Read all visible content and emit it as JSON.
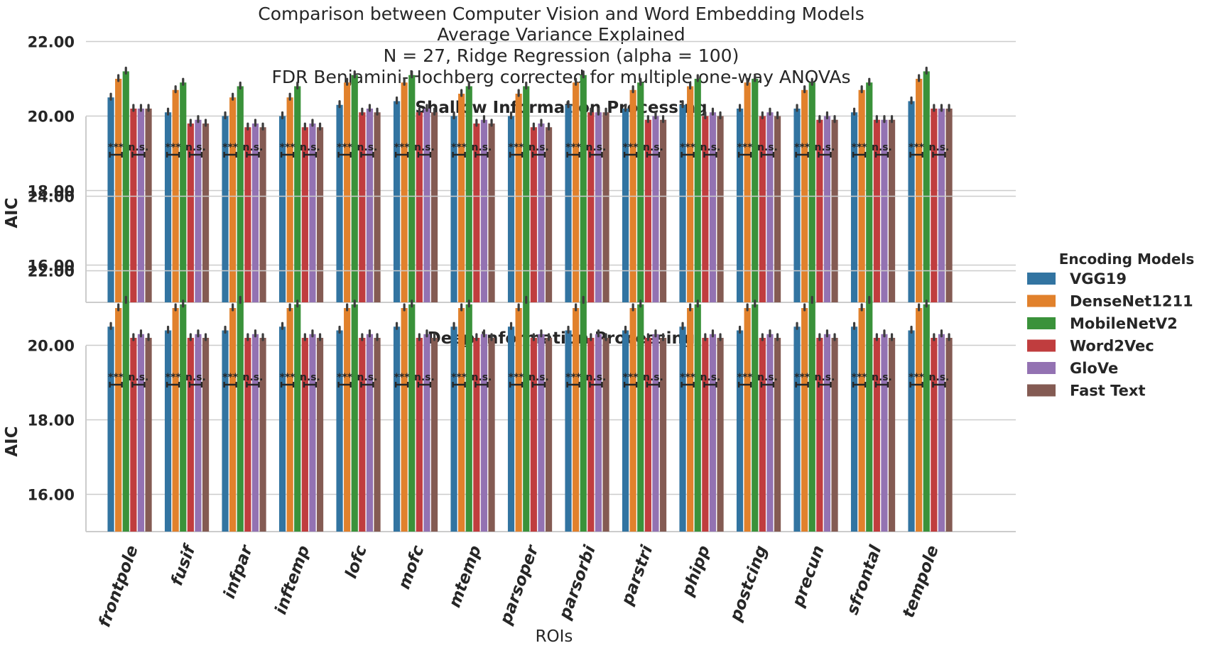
{
  "titles": [
    "Comparison between Computer Vision and Word Embedding Models",
    "Average Variance Explained",
    "N = 27, Ridge Regression (alpha = 100)",
    "FDR Benjamini-Hochberg corrected for multiple one-way ANOVAs"
  ],
  "colors": {
    "VGG19": "#3274a1",
    "DenseNet1211": "#e1812c",
    "MobileNetV2": "#3a923a",
    "Word2Vec": "#c03d3e",
    "GloVe": "#9372b2",
    "Fast Text": "#845b53"
  },
  "chart_data": {
    "type": "bar",
    "xlabel": "ROIs",
    "ylabel": "AIC",
    "ylim": [
      15,
      25
    ],
    "yticks": [
      "16.00",
      "18.00",
      "20.00",
      "22.00",
      "24.00"
    ],
    "grid": true,
    "legend": {
      "title": "Encoding Models",
      "placement": "right",
      "entries": [
        "VGG19",
        "DenseNet1211",
        "MobileNetV2",
        "Word2Vec",
        "GloVe",
        "Fast Text"
      ]
    },
    "categories": [
      "frontpole",
      "fusif",
      "infpar",
      "inftemp",
      "lofc",
      "mofc",
      "mtemp",
      "parsoper",
      "parsorbi",
      "parstri",
      "phipp",
      "postcing",
      "precun",
      "sfrontal",
      "tempole"
    ],
    "significance": {
      "vision": "***",
      "word": "n.s."
    },
    "panels": [
      {
        "title": "Shallow Information Processing",
        "series": [
          {
            "name": "VGG19",
            "values": [
              20.5,
              20.1,
              20.0,
              20.0,
              20.3,
              20.4,
              20.0,
              20.0,
              20.3,
              20.2,
              20.3,
              20.2,
              20.2,
              20.1,
              20.4
            ]
          },
          {
            "name": "DenseNet1211",
            "values": [
              21.0,
              20.7,
              20.5,
              20.5,
              20.9,
              20.9,
              20.6,
              20.6,
              20.9,
              20.7,
              20.8,
              20.9,
              20.7,
              20.7,
              21.0
            ]
          },
          {
            "name": "MobileNetV2",
            "values": [
              21.2,
              20.9,
              20.8,
              20.8,
              21.1,
              21.1,
              20.8,
              20.8,
              21.1,
              20.9,
              21.0,
              21.0,
              20.9,
              20.9,
              21.2
            ]
          },
          {
            "name": "Word2Vec",
            "values": [
              20.2,
              19.8,
              19.7,
              19.7,
              20.1,
              20.1,
              19.8,
              19.7,
              20.1,
              19.9,
              20.0,
              20.0,
              19.9,
              19.9,
              20.2
            ]
          },
          {
            "name": "GloVe",
            "values": [
              20.2,
              19.9,
              19.8,
              19.8,
              20.2,
              20.2,
              19.9,
              19.8,
              20.1,
              20.0,
              20.1,
              20.1,
              20.0,
              19.9,
              20.2
            ]
          },
          {
            "name": "Fast Text",
            "values": [
              20.2,
              19.8,
              19.7,
              19.7,
              20.1,
              20.1,
              19.8,
              19.7,
              20.1,
              19.9,
              20.0,
              20.0,
              19.9,
              19.9,
              20.2
            ]
          }
        ]
      },
      {
        "title": "Deep Information Processing",
        "series": [
          {
            "name": "VGG19",
            "values": [
              20.5,
              20.4,
              20.4,
              20.5,
              20.4,
              20.5,
              20.5,
              20.5,
              20.4,
              20.4,
              20.5,
              20.4,
              20.5,
              20.5,
              20.4
            ]
          },
          {
            "name": "DenseNet1211",
            "values": [
              21.0,
              21.0,
              21.0,
              21.0,
              21.0,
              21.0,
              21.0,
              21.0,
              21.0,
              21.0,
              21.0,
              21.0,
              21.0,
              21.0,
              21.0
            ]
          },
          {
            "name": "MobileNetV2",
            "values": [
              21.2,
              21.1,
              21.2,
              21.1,
              21.1,
              21.1,
              21.1,
              21.2,
              21.2,
              21.1,
              21.1,
              21.1,
              21.2,
              21.2,
              21.1
            ]
          },
          {
            "name": "Word2Vec",
            "values": [
              20.2,
              20.2,
              20.2,
              20.2,
              20.2,
              20.2,
              20.2,
              20.2,
              20.2,
              20.2,
              20.2,
              20.2,
              20.2,
              20.2,
              20.2
            ]
          },
          {
            "name": "GloVe",
            "values": [
              20.3,
              20.3,
              20.3,
              20.3,
              20.3,
              20.3,
              20.3,
              20.3,
              20.3,
              20.3,
              20.3,
              20.3,
              20.3,
              20.3,
              20.3
            ]
          },
          {
            "name": "Fast Text",
            "values": [
              20.2,
              20.2,
              20.2,
              20.2,
              20.2,
              20.2,
              20.2,
              20.2,
              20.2,
              20.2,
              20.2,
              20.2,
              20.2,
              20.2,
              20.2
            ]
          }
        ]
      }
    ]
  }
}
